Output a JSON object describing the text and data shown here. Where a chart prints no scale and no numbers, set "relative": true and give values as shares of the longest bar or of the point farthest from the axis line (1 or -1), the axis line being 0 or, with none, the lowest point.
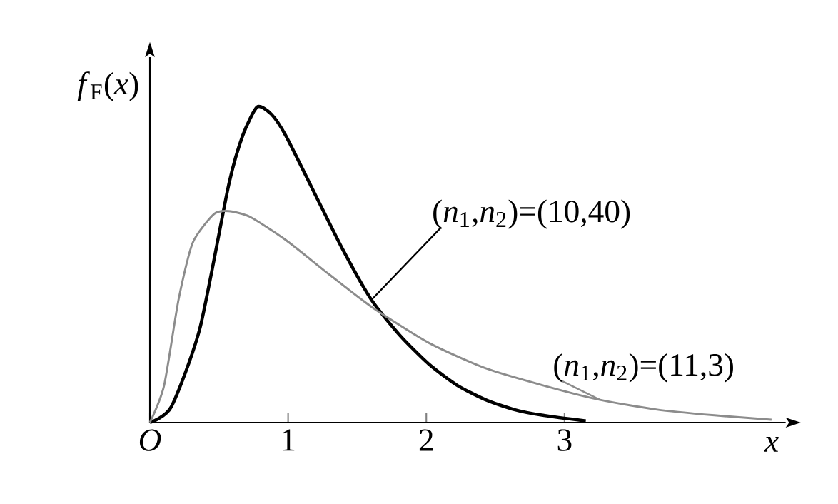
{
  "chart_data": {
    "type": "line",
    "relative": true,
    "xlabel": "*x*",
    "ylabel": "*f*$_{F}$(*x*)",
    "xlim": [
      0,
      4.6
    ],
    "xticks": [
      {
        "value": 0,
        "label": "*O*"
      },
      1,
      2,
      3
    ],
    "tick_labels": "x",
    "legend": false,
    "grid": false,
    "marker": "none",
    "line_style": "solid",
    "series": [
      {
        "name": "(*n*$_{1}$,*n*$_{2}$)=(10,40)",
        "color": "#000000",
        "x": [
          0,
          0.155,
          0.362,
          0.569,
          0.672,
          0.776,
          0.879,
          0.982,
          1.189,
          1.396,
          1.603,
          1.81,
          2.017,
          2.224,
          2.43,
          2.637,
          2.844,
          3.154
        ],
        "values": [
          0,
          0.05,
          0.299,
          0.751,
          0.91,
          1,
          0.977,
          0.91,
          0.729,
          0.548,
          0.389,
          0.276,
          0.186,
          0.118,
          0.072,
          0.041,
          0.023,
          0.005
        ]
      },
      {
        "name": "(*n*$_{1}$,*n*$_{2}$)=(11,3)",
        "color": "#8c8c8c",
        "x": [
          0,
          0.103,
          0.207,
          0.31,
          0.465,
          0.569,
          0.724,
          0.982,
          1.293,
          1.603,
          2.017,
          2.43,
          2.844,
          3.257,
          3.671,
          4.085,
          4.498
        ],
        "values": [
          0,
          0.118,
          0.389,
          0.57,
          0.661,
          0.67,
          0.652,
          0.579,
          0.471,
          0.367,
          0.253,
          0.172,
          0.118,
          0.072,
          0.041,
          0.023,
          0.009
        ]
      }
    ]
  }
}
